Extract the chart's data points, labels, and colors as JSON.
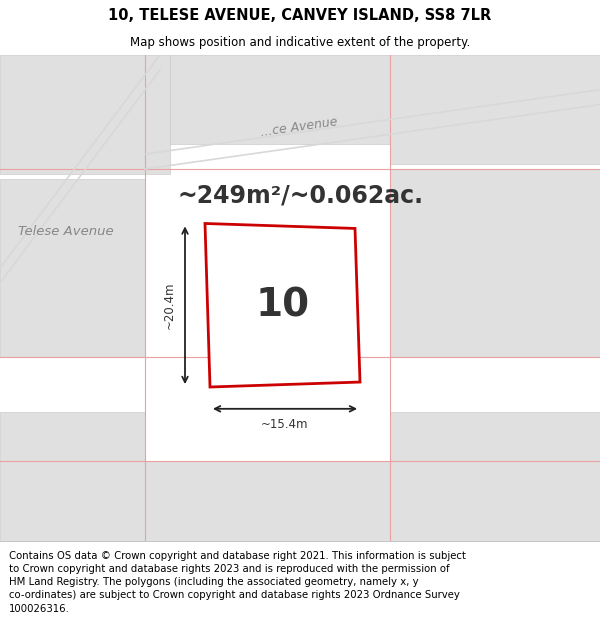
{
  "title": "10, TELESE AVENUE, CANVEY ISLAND, SS8 7LR",
  "subtitle": "Map shows position and indicative extent of the property.",
  "area_label": "~249m²/~0.062ac.",
  "plot_number": "10",
  "dim_width": "~15.4m",
  "dim_height": "~20.4m",
  "street_label1": "Telese Avenue",
  "street_label2": "...ce Avenue",
  "footer": "Contains OS data © Crown copyright and database right 2021. This information is subject\nto Crown copyright and database rights 2023 and is reproduced with the permission of\nHM Land Registry. The polygons (including the associated geometry, namely x, y\nco-ordinates) are subject to Crown copyright and database rights 2023 Ordnance Survey\n100026316.",
  "map_bg": "#f2f2f2",
  "plot_fill": "#ffffff",
  "plot_edge": "#cc0000",
  "grid_line_color": "#e8a0a0",
  "block_fill": "#e0e0e0",
  "block_edge": "#cccccc",
  "road_color": "#d8d8d8",
  "arrow_color": "#222222",
  "text_color": "#333333",
  "street_color": "#888888"
}
